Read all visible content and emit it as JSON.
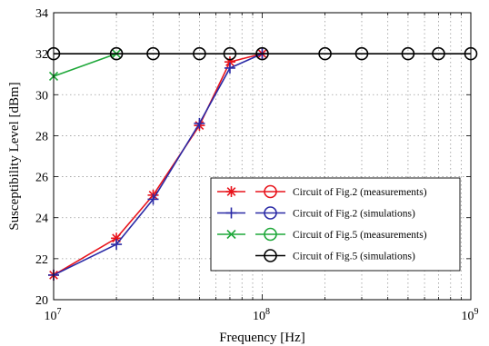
{
  "chart_data": {
    "type": "line",
    "title": "",
    "xlabel": "Frequency [Hz]",
    "ylabel": "Susceptibility Level [dBm]",
    "x_scale": "log",
    "xlim": [
      10000000,
      1000000000
    ],
    "ylim": [
      20,
      34
    ],
    "grid": true,
    "legend_position": "lower-right",
    "x_ticks": [
      {
        "value": 10000000,
        "base": "10",
        "exp": "7"
      },
      {
        "value": 100000000,
        "base": "10",
        "exp": "8"
      },
      {
        "value": 1000000000,
        "base": "10",
        "exp": "9"
      }
    ],
    "y_ticks": [
      20,
      22,
      24,
      26,
      28,
      30,
      32,
      34
    ],
    "series": [
      {
        "name": "Circuit of Fig.2 (measurements)",
        "color": "#e8141c",
        "marker": "asterisk",
        "x": [
          10000000,
          20000000,
          30000000,
          50000000,
          70000000,
          100000000
        ],
        "y": [
          21.2,
          23.0,
          25.1,
          28.5,
          31.6,
          32.0
        ]
      },
      {
        "name": "Circuit of Fig.2 (simulations)",
        "color": "#2a2aa6",
        "marker": "plus",
        "x": [
          10000000,
          20000000,
          30000000,
          50000000,
          70000000,
          100000000
        ],
        "y": [
          21.2,
          22.7,
          24.9,
          28.6,
          31.3,
          32.0
        ]
      },
      {
        "name": "Circuit of Fig.5 (measurements)",
        "color": "#1fa83a",
        "marker": "x",
        "x": [
          10000000,
          20000000
        ],
        "y": [
          30.9,
          32.0
        ]
      },
      {
        "name": "Circuit of Fig.5 (simulations)",
        "color": "#000000",
        "marker": "circle",
        "x": [
          10000000,
          20000000,
          30000000,
          50000000,
          70000000,
          100000000,
          200000000,
          300000000,
          500000000,
          700000000,
          1000000000
        ],
        "y": [
          32,
          32,
          32,
          32,
          32,
          32,
          32,
          32,
          32,
          32,
          32
        ]
      }
    ]
  }
}
